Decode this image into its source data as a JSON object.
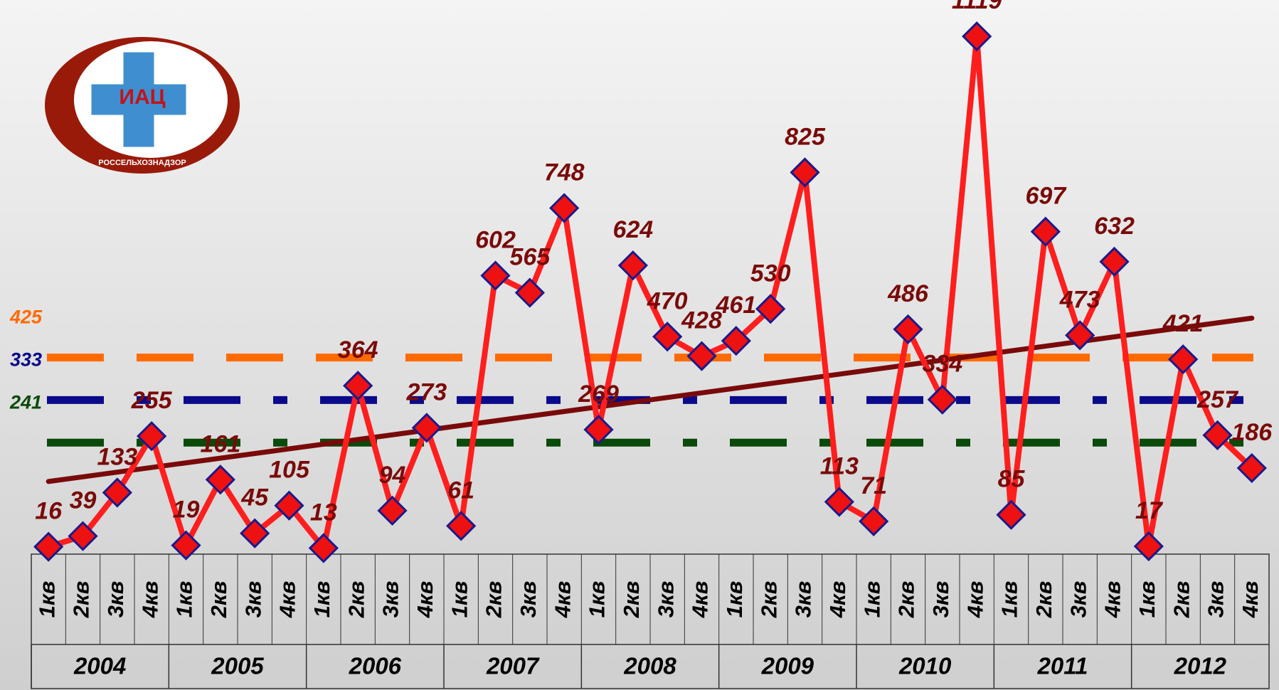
{
  "logo": {
    "text": "ИАЦ",
    "subtitle": "РОССЕЛЬХОЗНАДЗОР"
  },
  "chart_data": {
    "type": "line",
    "categories": [
      "1кв",
      "2кв",
      "3кв",
      "4кв",
      "1кв",
      "2кв",
      "3кв",
      "4кв",
      "1кв",
      "2кв",
      "3кв",
      "4кв",
      "1кв",
      "2кв",
      "3кв",
      "4кв",
      "1кв",
      "2кв",
      "3кв",
      "4кв",
      "1кв",
      "2кв",
      "3кв",
      "4кв",
      "1кв",
      "2кв",
      "3кв",
      "4кв",
      "1кв",
      "2кв",
      "3кв",
      "4кв",
      "1кв",
      "2кв",
      "3кв",
      "4кв"
    ],
    "years": [
      "2004",
      "2005",
      "2006",
      "2007",
      "2008",
      "2009",
      "2010",
      "2011",
      "2012"
    ],
    "series": [
      {
        "color": "#ff1e1e",
        "marker_color": "#ee1111",
        "marker_edge": "#1a1a8c",
        "values": [
          16,
          39,
          133,
          255,
          19,
          161,
          45,
          105,
          13,
          364,
          94,
          273,
          61,
          602,
          565,
          748,
          269,
          624,
          470,
          428,
          461,
          530,
          825,
          113,
          71,
          486,
          334,
          1119,
          85,
          697,
          473,
          632,
          17,
          421,
          257,
          186
        ]
      }
    ],
    "reference_lines": [
      {
        "value": 425,
        "color": "#ff6a00"
      },
      {
        "value": 333,
        "color": "#0a0a8a"
      },
      {
        "value": 241,
        "color": "#0a4a0a"
      }
    ],
    "trend_line": {
      "start": 157,
      "end": 510,
      "color": "#7a0a0a"
    },
    "ylim": [
      0,
      1150
    ]
  }
}
